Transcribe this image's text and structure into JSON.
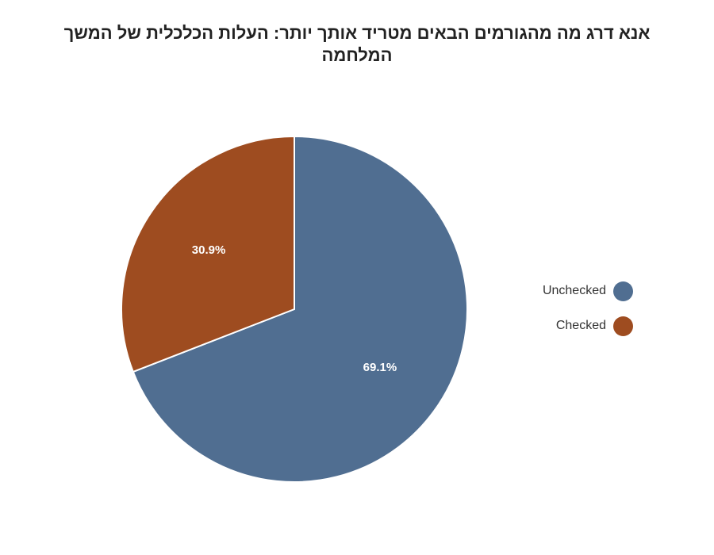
{
  "chart_data": {
    "type": "pie",
    "title": "אנא דרג מה מהגורמים הבאים מטריד אותך יותר:  העלות הכלכלית של המשך המלחמה",
    "slices": [
      {
        "name": "Unchecked",
        "value": 69.1,
        "label": "69.1%",
        "color": "#506e91"
      },
      {
        "name": "Checked",
        "value": 30.9,
        "label": "30.9%",
        "color": "#9e4c20"
      }
    ],
    "legend_position": "right"
  }
}
